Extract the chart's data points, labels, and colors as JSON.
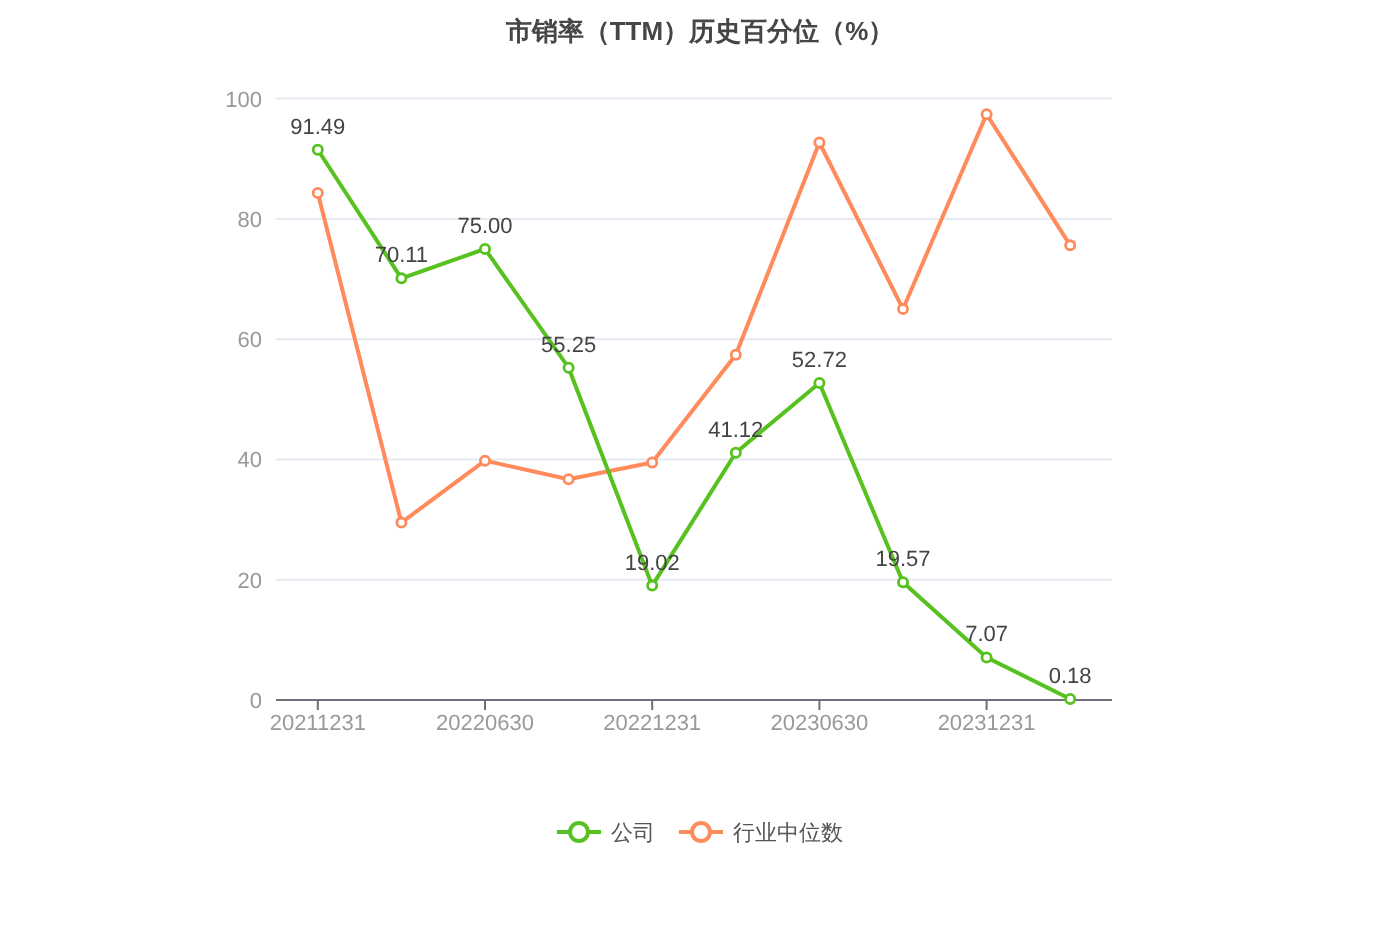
{
  "chart_data": {
    "type": "line",
    "title": "市销率（TTM）历史百分位（%）",
    "categories": [
      "20211231",
      null,
      "20220630",
      null,
      "20221231",
      null,
      "20230630",
      null,
      "20231231",
      null
    ],
    "series": [
      {
        "name": "公司",
        "color": "#56c11f",
        "values": [
          91.49,
          70.11,
          75.0,
          55.25,
          19.02,
          41.12,
          52.72,
          19.57,
          7.07,
          0.18
        ],
        "value_labels": [
          "91.49",
          "70.11",
          "75.00",
          "55.25",
          "19.02",
          "41.12",
          "52.72",
          "19.57",
          "7.07",
          "0.18"
        ]
      },
      {
        "name": "行业中位数",
        "color": "#ff8a5b",
        "values": [
          84.3,
          29.5,
          39.8,
          36.7,
          39.5,
          57.4,
          92.7,
          65.0,
          97.4,
          75.6
        ]
      }
    ],
    "ylim": [
      0,
      100
    ],
    "yticks": [
      0,
      20,
      40,
      60,
      80,
      100
    ],
    "grid": "y",
    "legend": "bottom",
    "marker": "circle",
    "line_style": "solid"
  }
}
